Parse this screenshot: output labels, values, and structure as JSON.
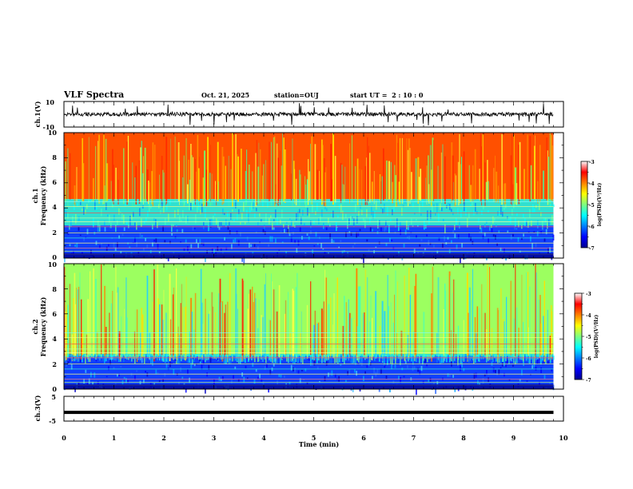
{
  "header": {
    "title": "VLF Spectra",
    "date": "Oct. 21, 2025",
    "station": "station=OUJ",
    "start": "start UT =  2 : 10 : 0"
  },
  "chart_data": [
    {
      "type": "line",
      "name": "ch1-waveform",
      "ylabel": "ch.1(V)",
      "ylim": [
        -10,
        10
      ],
      "y_tick_labels": [
        "10",
        "-10"
      ],
      "baseline_v": 0,
      "amplitude_v": 1.5
    },
    {
      "type": "heatmap",
      "name": "ch1-spectrogram",
      "ylabel_line1": "ch.1",
      "ylabel_line2": "Frequency (kHz)",
      "ylim": [
        0,
        10
      ],
      "y_tick_labels": [
        "0",
        "2",
        "4",
        "6",
        "8",
        "10"
      ],
      "colorbar": {
        "label": "log(PSD)(V²/Hz)",
        "range": [
          -7,
          -3
        ],
        "tick_labels": [
          "-3",
          "-4",
          "-5",
          "-6",
          "-7"
        ]
      },
      "cutoff_khz": 4.7
    },
    {
      "type": "heatmap",
      "name": "ch2-spectrogram",
      "ylabel_line1": "ch.2",
      "ylabel_line2": "Frequency (kHz)",
      "ylim": [
        0,
        10
      ],
      "y_tick_labels": [
        "0",
        "2",
        "4",
        "6",
        "8",
        "10"
      ],
      "colorbar": {
        "label": "log(PSD)(V²/Hz)",
        "range": [
          -7,
          -3
        ],
        "tick_labels": [
          "-3",
          "-4",
          "-5",
          "-6",
          "-7"
        ]
      },
      "cutoff_khz": 2.8
    },
    {
      "type": "line",
      "name": "ch3-waveform",
      "ylabel": "ch.3(V)",
      "ylim": [
        -5,
        5
      ],
      "y_tick_labels": [
        "5",
        "-5"
      ],
      "baseline_v": -1.5
    }
  ],
  "xaxis": {
    "label": "Time (min)",
    "range": [
      0,
      10
    ],
    "data_end_min": 9.8,
    "tick_labels": [
      "0",
      "1",
      "2",
      "3",
      "4",
      "5",
      "6",
      "7",
      "8",
      "9",
      "10"
    ]
  },
  "colors": {
    "jet": [
      "#00008f",
      "#0000ff",
      "#0080ff",
      "#00ffff",
      "#80ff80",
      "#ffff00",
      "#ff8000",
      "#ff0000",
      "#800000"
    ]
  }
}
